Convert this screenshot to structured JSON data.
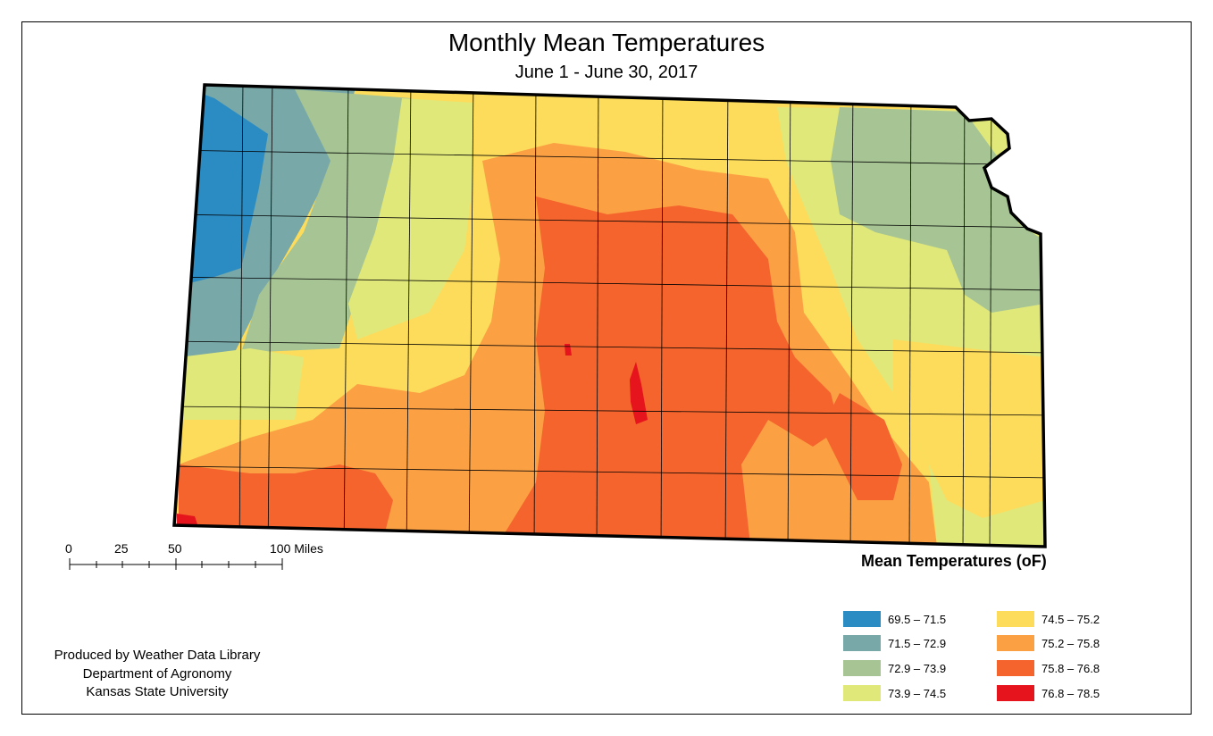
{
  "title": "Monthly Mean Temperatures",
  "subtitle": "June 1 - June 30, 2017",
  "legend": {
    "title": "Mean Temperatures (oF)",
    "classes": [
      {
        "label": "69.5 – 71.5",
        "color": "#2b8cc4"
      },
      {
        "label": "71.5 – 72.9",
        "color": "#78a8a8"
      },
      {
        "label": "72.9 – 73.9",
        "color": "#a6c494"
      },
      {
        "label": "73.9 – 74.5",
        "color": "#e1e87a"
      },
      {
        "label": "74.5 – 75.2",
        "color": "#fcdc5a"
      },
      {
        "label": "75.2 – 75.8",
        "color": "#fca044"
      },
      {
        "label": "75.8 – 76.8",
        "color": "#f4642c"
      },
      {
        "label": "76.8 – 78.5",
        "color": "#e6141c"
      }
    ]
  },
  "scale_bar": {
    "labels": [
      "0",
      "25",
      "50",
      "100 Miles"
    ]
  },
  "credits": {
    "line1": "Produced by Weather Data Library",
    "line2": "Department of Agronomy",
    "line3": "Kansas State University"
  }
}
